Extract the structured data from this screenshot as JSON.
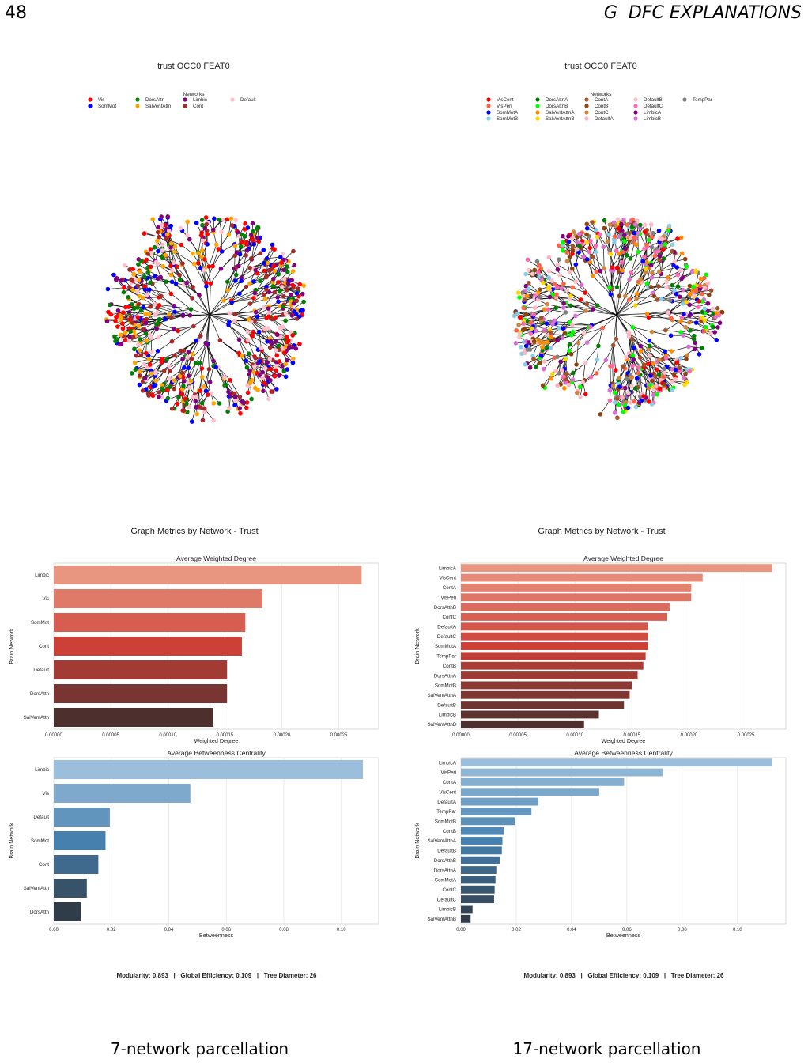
{
  "page": {
    "number": "48",
    "section_letter": "G",
    "section_title": "DFC EXPLANATIONS"
  },
  "panels": [
    {
      "caption": "7-network parcellation",
      "tree_title": "trust OCC0 FEAT0",
      "legend_title": "Networks",
      "legend": [
        {
          "name": "Vis",
          "color": "#ff0000"
        },
        {
          "name": "SomMot",
          "color": "#0000ff"
        },
        {
          "name": "DorsAttn",
          "color": "#008000"
        },
        {
          "name": "SalVentAttn",
          "color": "#ffa500"
        },
        {
          "name": "Limbic",
          "color": "#800080"
        },
        {
          "name": "Cont",
          "color": "#a52a2a"
        },
        {
          "name": "Default",
          "color": "#ffc0cb"
        }
      ],
      "metrics_title": "Graph Metrics by Network - Trust",
      "footer": "Modularity: 0.893   |   Global Efficiency: 0.109   |   Tree Diameter: 26",
      "chart_data": [
        {
          "type": "bar",
          "orientation": "horizontal",
          "title": "Average Weighted Degree",
          "xlabel": "Weighted Degree",
          "ylabel": "Brain Network",
          "xlim": [
            0,
            0.000285
          ],
          "ticks": [
            "0.00000",
            "0.00005",
            "0.00010",
            "0.00015",
            "0.00020",
            "0.00025"
          ],
          "tick_values": [
            0,
            5e-05,
            0.0001,
            0.00015,
            0.0002,
            0.00025
          ],
          "palette": "reds",
          "categories": [
            "Limbic",
            "Vis",
            "SomMot",
            "Cont",
            "Default",
            "DorsAttn",
            "SalVentAttn"
          ],
          "values": [
            0.00027,
            0.000183,
            0.000168,
            0.000165,
            0.000152,
            0.000152,
            0.00014
          ]
        },
        {
          "type": "bar",
          "orientation": "horizontal",
          "title": "Average Betweenness Centrality",
          "xlabel": "Betweenness",
          "ylabel": "Brain Network",
          "xlim": [
            0,
            0.113
          ],
          "ticks": [
            "0.00",
            "0.02",
            "0.04",
            "0.06",
            "0.08",
            "0.10"
          ],
          "tick_values": [
            0,
            0.02,
            0.04,
            0.06,
            0.08,
            0.1
          ],
          "palette": "blues",
          "categories": [
            "Limbic",
            "Vis",
            "Default",
            "SomMot",
            "Cont",
            "SalVentAttn",
            "DorsAttn"
          ],
          "values": [
            0.1075,
            0.0475,
            0.0195,
            0.018,
            0.0155,
            0.0115,
            0.0095
          ]
        }
      ]
    },
    {
      "caption": "17-network parcellation",
      "tree_title": "trust OCC0 FEAT0",
      "legend_title": "Networks",
      "legend": [
        {
          "name": "VisCent",
          "color": "#ff0000"
        },
        {
          "name": "VisPeri",
          "color": "#ff6347"
        },
        {
          "name": "SomMotA",
          "color": "#0000ff"
        },
        {
          "name": "SomMotB",
          "color": "#87ceeb"
        },
        {
          "name": "DorsAttnA",
          "color": "#008000"
        },
        {
          "name": "DorsAttnB",
          "color": "#00ff00"
        },
        {
          "name": "SalVentAttnA",
          "color": "#ff8c00"
        },
        {
          "name": "SalVentAttnB",
          "color": "#ffd700"
        },
        {
          "name": "ContA",
          "color": "#a0522d"
        },
        {
          "name": "ContB",
          "color": "#8b4513"
        },
        {
          "name": "ContC",
          "color": "#cd853f"
        },
        {
          "name": "DefaultA",
          "color": "#ffb6c1"
        },
        {
          "name": "DefaultB",
          "color": "#ffc0cb"
        },
        {
          "name": "DefaultC",
          "color": "#ff69b4"
        },
        {
          "name": "LimbicA",
          "color": "#800080"
        },
        {
          "name": "LimbicB",
          "color": "#da70d6"
        },
        {
          "name": "TempPar",
          "color": "#808080"
        }
      ],
      "metrics_title": "Graph Metrics by Network - Trust",
      "footer": "Modularity: 0.893   |   Global Efficiency: 0.109   |   Tree Diameter: 26",
      "chart_data": [
        {
          "type": "bar",
          "orientation": "horizontal",
          "title": "Average Weighted Degree",
          "xlabel": "Weighted Degree",
          "ylabel": "Brain Network",
          "xlim": [
            0,
            0.000285
          ],
          "ticks": [
            "0.00000",
            "0.00005",
            "0.00010",
            "0.00015",
            "0.00020",
            "0.00025"
          ],
          "tick_values": [
            0,
            5e-05,
            0.0001,
            0.00015,
            0.0002,
            0.00025
          ],
          "palette": "reds",
          "categories": [
            "LimbicA",
            "VisCent",
            "ContA",
            "VisPeri",
            "DorsAttnB",
            "ContC",
            "DefaultA",
            "DefaultC",
            "SomMotA",
            "TempPar",
            "ContB",
            "DorsAttnA",
            "SomMotB",
            "SalVentAttnA",
            "DefaultB",
            "LimbicB",
            "SalVentAttnB"
          ],
          "values": [
            0.000273,
            0.000212,
            0.000202,
            0.000202,
            0.000183,
            0.000181,
            0.000164,
            0.000164,
            0.000164,
            0.000162,
            0.00016,
            0.000155,
            0.00015,
            0.000148,
            0.000143,
            0.000121,
            0.000108
          ]
        },
        {
          "type": "bar",
          "orientation": "horizontal",
          "title": "Average Betweenness Centrality",
          "xlabel": "Betweenness",
          "ylabel": "Brain Network",
          "xlim": [
            0,
            0.1175
          ],
          "ticks": [
            "0.00",
            "0.02",
            "0.04",
            "0.06",
            "0.08",
            "0.10"
          ],
          "tick_values": [
            0,
            0.02,
            0.04,
            0.06,
            0.08,
            0.1
          ],
          "palette": "blues",
          "categories": [
            "LimbicA",
            "VisPeri",
            "ContA",
            "VisCent",
            "DefaultA",
            "TempPar",
            "SomMotB",
            "ContB",
            "SalVentAttnA",
            "DefaultB",
            "DorsAttnB",
            "DorsAttnA",
            "SomMotA",
            "ContC",
            "DefaultC",
            "LimbicB",
            "SalVentAttnB"
          ],
          "values": [
            0.1125,
            0.073,
            0.059,
            0.05,
            0.028,
            0.0255,
            0.0195,
            0.0155,
            0.015,
            0.0148,
            0.014,
            0.0128,
            0.0125,
            0.0122,
            0.012,
            0.0042,
            0.0035
          ]
        }
      ]
    }
  ]
}
